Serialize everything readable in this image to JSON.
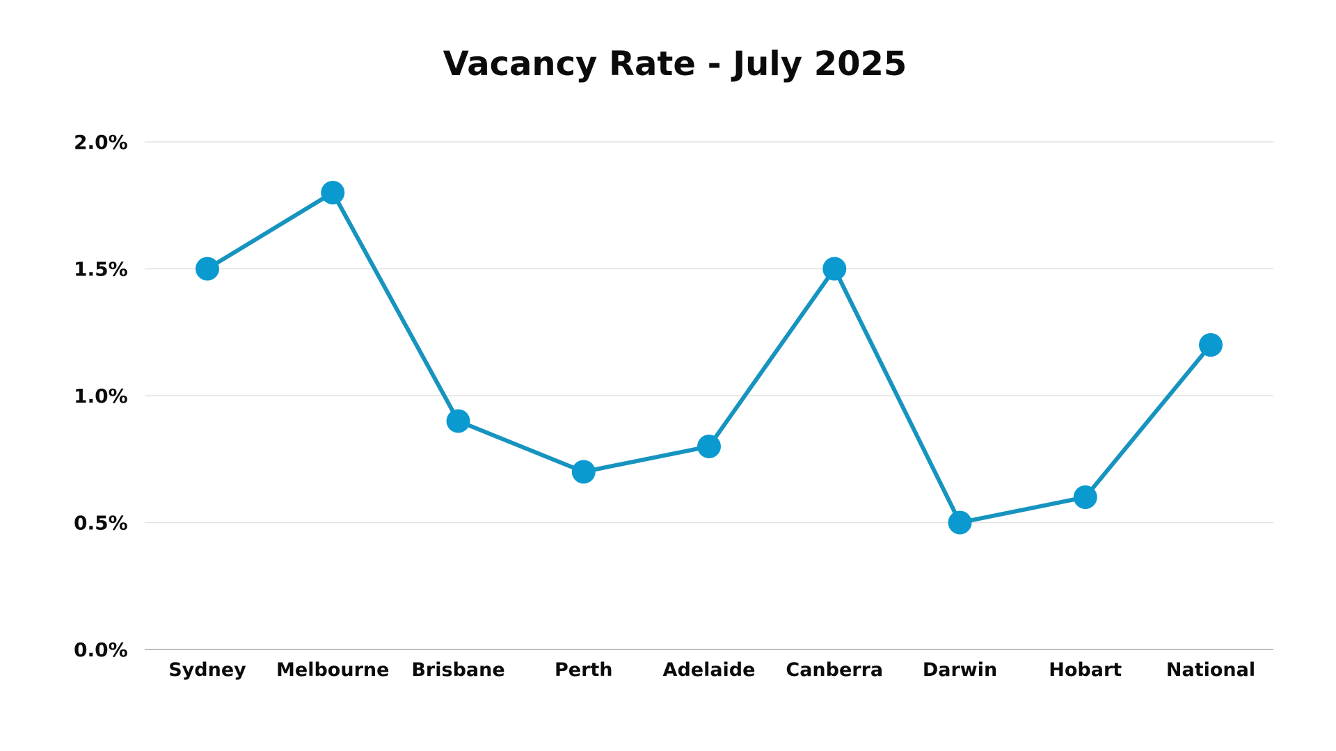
{
  "chart_data": {
    "type": "line",
    "title": "Vacancy Rate - July 2025",
    "categories": [
      "Sydney",
      "Melbourne",
      "Brisbane",
      "Perth",
      "Adelaide",
      "Canberra",
      "Darwin",
      "Hobart",
      "National"
    ],
    "series": [
      {
        "values": [
          1.5,
          1.8,
          0.9,
          0.7,
          0.8,
          1.5,
          0.5,
          0.6,
          1.2
        ],
        "color": "#1694bf",
        "marker_color": "#0a9ad0"
      }
    ],
    "yticks": [
      "0.0%",
      "0.5%",
      "1.0%",
      "1.5%",
      "2.0%"
    ],
    "ytick_values": [
      0,
      0.5,
      1.0,
      1.5,
      2.0
    ],
    "ylim": [
      0,
      2.0
    ],
    "xlabel": "",
    "ylabel": "",
    "grid": true,
    "legend": "none"
  }
}
